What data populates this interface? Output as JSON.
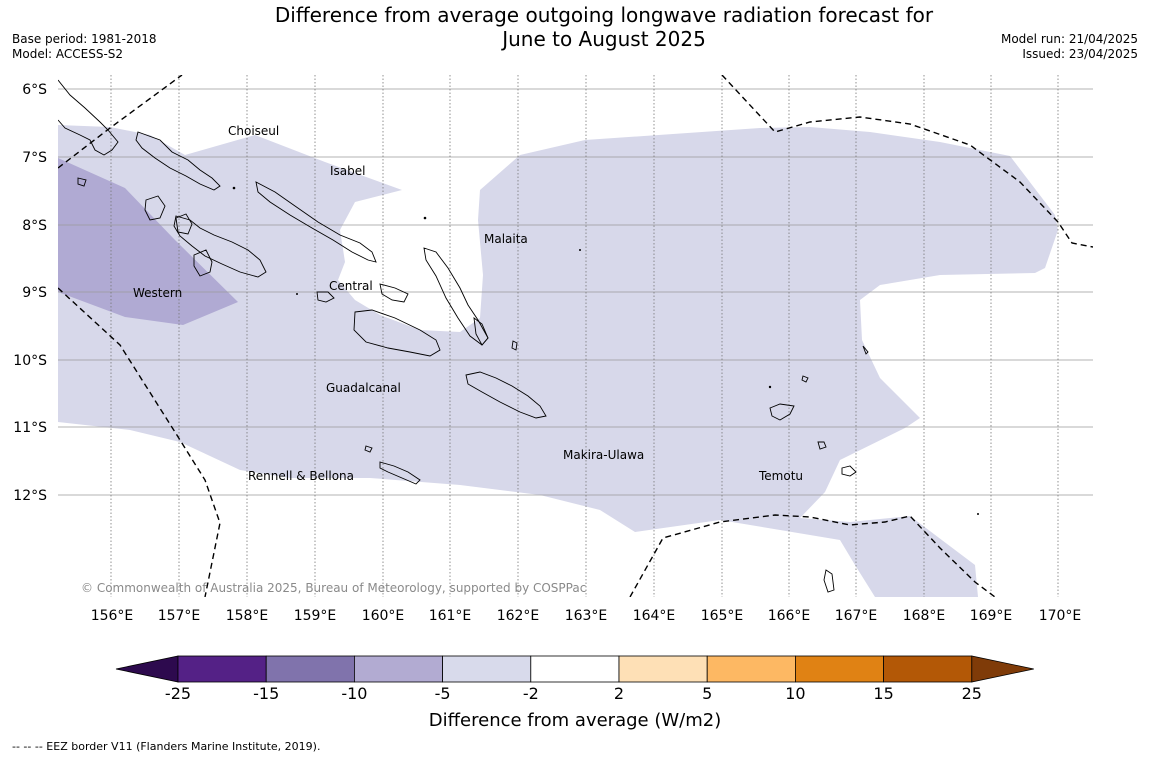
{
  "title": {
    "line1": "Difference from average outgoing longwave radiation forecast for",
    "line2": "June to August 2025"
  },
  "meta_left": {
    "base_period": "Base period: 1981-2018",
    "model": "Model: ACCESS-S2"
  },
  "meta_right": {
    "model_run": "Model run: 21/04/2025",
    "issued": "Issued: 23/04/2025"
  },
  "map": {
    "lat_labels": [
      "6°S",
      "7°S",
      "8°S",
      "9°S",
      "10°S",
      "11°S",
      "12°S"
    ],
    "lon_labels": [
      "156°E",
      "157°E",
      "158°E",
      "159°E",
      "160°E",
      "161°E",
      "162°E",
      "163°E",
      "164°E",
      "165°E",
      "166°E",
      "167°E",
      "168°E",
      "169°E",
      "170°E"
    ],
    "regions": [
      "Choiseul",
      "Isabel",
      "Malaita",
      "Western",
      "Central",
      "Guadalcanal",
      "Makira-Ulawa",
      "Temotu",
      "Rennell & Bellona"
    ],
    "copyright": "© Commonwealth of Australia 2025, Bureau of Meteorology, supported by COSPPac",
    "colors": {
      "anomaly_minus5_to_minus2": "#d7d8ea",
      "anomaly_minus10_to_minus5": "#b0aad3",
      "coastline": "#000000",
      "eez_border": "#000000",
      "gridline": "#9a9a9a"
    }
  },
  "colorbar": {
    "ticks": [
      "-25",
      "-15",
      "-10",
      "-5",
      "-2",
      "2",
      "5",
      "10",
      "15",
      "25"
    ],
    "colors": [
      "#2d0a4e",
      "#542186",
      "#8073ac",
      "#b2abd2",
      "#d8daeb",
      "#ffffff",
      "#fee0b6",
      "#fdb863",
      "#e08214",
      "#b35806",
      "#7f3b08"
    ],
    "label": "Difference from average (W/m2)"
  },
  "footnote": "--  --  -- EEZ border V11 (Flanders Marine Institute, 2019)."
}
